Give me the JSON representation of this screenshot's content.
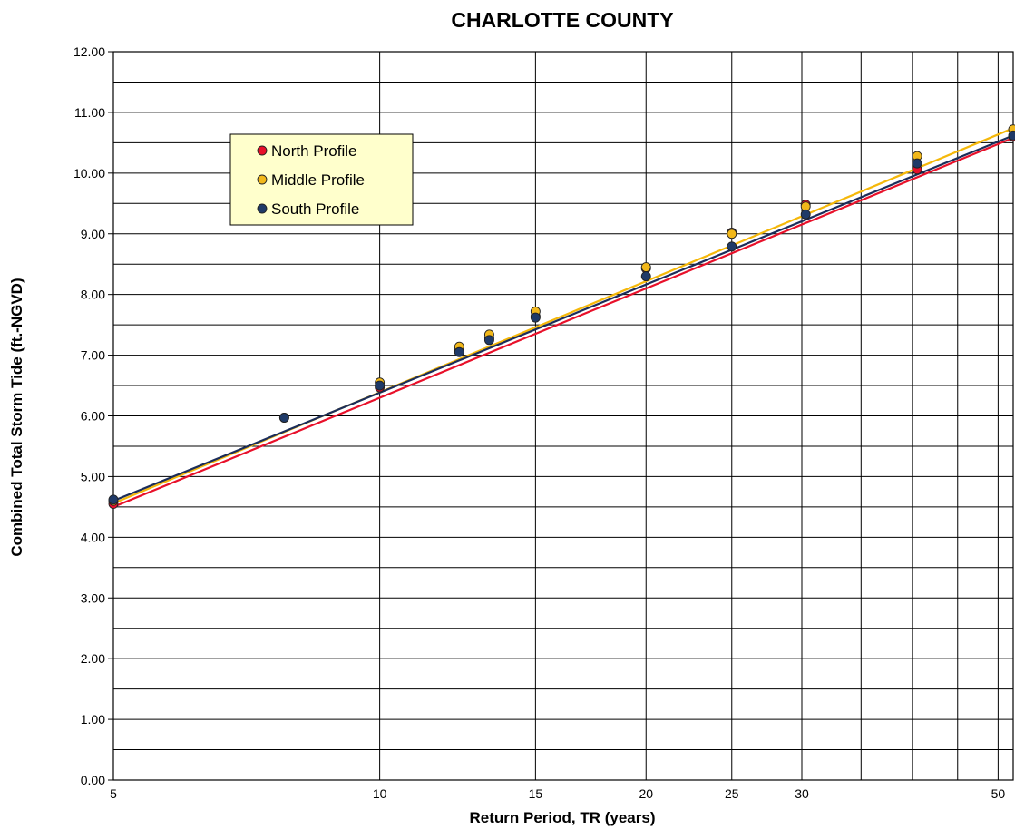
{
  "chart_data": {
    "type": "scatter",
    "title": "CHARLOTTE  COUNTY",
    "xlabel": "Return Period, TR (years)",
    "ylabel": "Combined Total Storm Tide (ft.-NGVD)",
    "x_scale": "log",
    "xlim": [
      5,
      52
    ],
    "ylim": [
      0,
      12
    ],
    "x_ticks": [
      5,
      10,
      15,
      20,
      25,
      30,
      50
    ],
    "x_gridlines": [
      5,
      10,
      15,
      20,
      25,
      30,
      35,
      40,
      45,
      50
    ],
    "y_ticks": [
      0,
      1,
      2,
      3,
      4,
      5,
      6,
      7,
      8,
      9,
      10,
      11,
      12
    ],
    "y_tick_labels": [
      "0.00",
      "1.00",
      "2.00",
      "3.00",
      "4.00",
      "5.00",
      "6.00",
      "7.00",
      "8.00",
      "9.00",
      "10.00",
      "11.00",
      "12.00"
    ],
    "y_minor_step": 0.5,
    "grid": true,
    "legend": "top-left",
    "series": [
      {
        "name": "North Profile",
        "color": "#e8102a",
        "line_color": "#e8102a",
        "x": [
          5,
          10,
          12.3,
          13.3,
          15,
          20,
          25,
          30.3,
          40.5,
          52
        ],
        "y": [
          4.55,
          6.47,
          7.08,
          7.28,
          7.64,
          8.43,
          9.02,
          9.48,
          10.06,
          10.6
        ],
        "fit": [
          [
            5,
            4.5
          ],
          [
            52,
            10.58
          ]
        ]
      },
      {
        "name": "Middle Profile",
        "color": "#f2b81a",
        "line_color": "#f5b80a",
        "x": [
          5,
          7.8,
          10,
          12.3,
          13.3,
          15,
          20,
          25,
          30.3,
          40.5,
          52
        ],
        "y": [
          4.6,
          5.97,
          6.55,
          7.14,
          7.34,
          7.72,
          8.45,
          9.0,
          9.45,
          10.28,
          10.72
        ],
        "fit": [
          [
            5,
            4.56
          ],
          [
            52,
            10.74
          ]
        ]
      },
      {
        "name": "South Profile",
        "color": "#1f3a68",
        "line_color": "#1b2d5a",
        "x": [
          5,
          7.8,
          10,
          12.3,
          13.3,
          15,
          20,
          25,
          30.3,
          40.5,
          52
        ],
        "y": [
          4.62,
          5.97,
          6.5,
          7.05,
          7.25,
          7.62,
          8.3,
          8.79,
          9.32,
          10.16,
          10.62
        ],
        "fit": [
          [
            5,
            4.6
          ],
          [
            52,
            10.62
          ]
        ]
      }
    ]
  }
}
